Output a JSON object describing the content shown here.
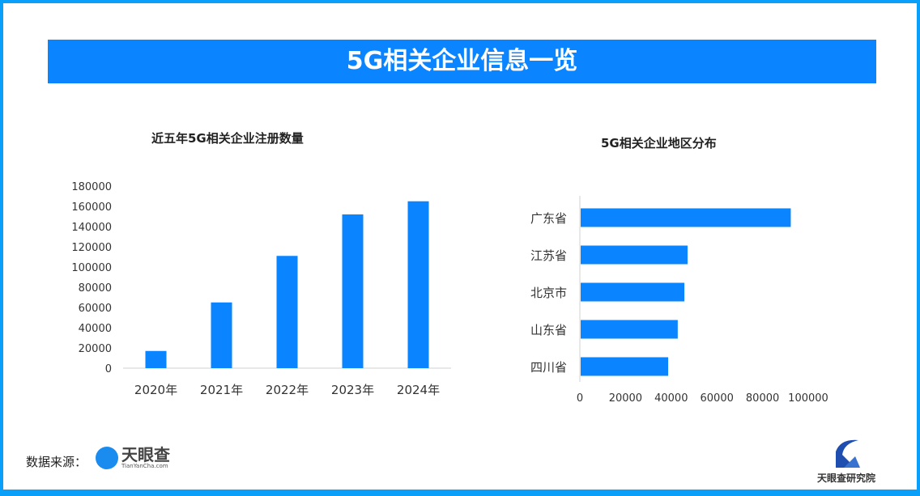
{
  "header": {
    "title": "5G相关企业信息一览"
  },
  "chart_data": [
    {
      "type": "bar",
      "title": "近五年5G相关企业注册数量",
      "categories": [
        "2020年",
        "2021年",
        "2022年",
        "2023年",
        "2024年"
      ],
      "values": [
        17000,
        65000,
        111000,
        152000,
        165000
      ],
      "ylim": [
        0,
        180000
      ],
      "yticks": [
        0,
        20000,
        40000,
        60000,
        80000,
        100000,
        120000,
        140000,
        160000,
        180000
      ],
      "grid": false,
      "color": "#0a85ff"
    },
    {
      "type": "bar",
      "orientation": "horizontal",
      "title": "5G相关企业地区分布",
      "categories": [
        "广东省",
        "江苏省",
        "北京市",
        "山东省",
        "四川省"
      ],
      "values": [
        92000,
        46800,
        45400,
        42500,
        38300
      ],
      "xlim": [
        0,
        100000
      ],
      "xticks": [
        0,
        20000,
        40000,
        60000,
        80000,
        100000
      ],
      "grid": false,
      "color": "#0a85ff"
    }
  ],
  "footer": {
    "source_label": "数据来源：",
    "source_logo_text": "天眼查",
    "source_logo_sub": "TianYanCha.com",
    "institute_logo_text": "天眼查研究院"
  }
}
